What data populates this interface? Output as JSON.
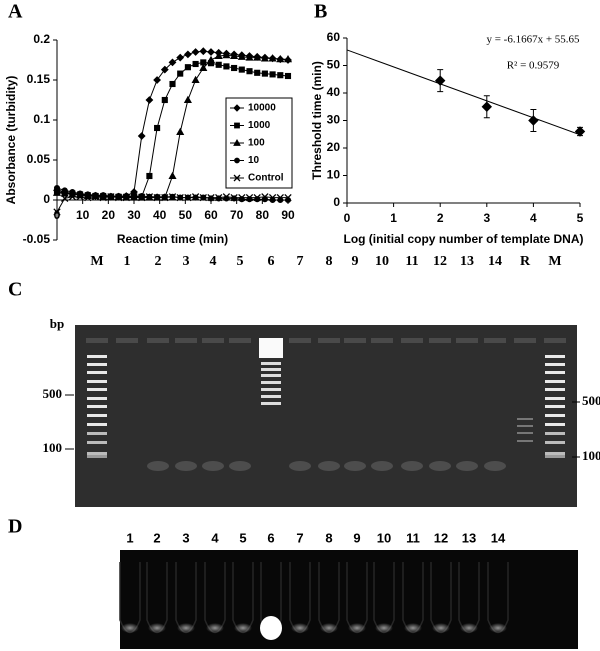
{
  "panels": [
    "A",
    "B",
    "C",
    "D"
  ],
  "chart_data": [
    {
      "type": "line",
      "xlabel": "Reaction time (min)",
      "ylabel": "Absorbance (turbidity)",
      "x": [
        0,
        3,
        6,
        9,
        12,
        15,
        18,
        21,
        24,
        27,
        30,
        33,
        36,
        39,
        42,
        45,
        48,
        51,
        54,
        57,
        60,
        63,
        66,
        69,
        72,
        75,
        78,
        81,
        84,
        87,
        90
      ],
      "series": [
        {
          "name": "10000",
          "color": "#000000",
          "marker": "diamond",
          "values": [
            0.012,
            0.01,
            0.008,
            0.007,
            0.006,
            0.005,
            0.005,
            0.004,
            0.004,
            0.005,
            0.01,
            0.08,
            0.125,
            0.15,
            0.163,
            0.172,
            0.178,
            0.182,
            0.185,
            0.186,
            0.185,
            0.184,
            0.183,
            0.182,
            0.181,
            0.18,
            0.179,
            0.178,
            0.177,
            0.176,
            0.175
          ]
        },
        {
          "name": "1000",
          "color": "#000000",
          "marker": "square",
          "values": [
            0.01,
            0.009,
            0.008,
            0.007,
            0.006,
            0.005,
            0.005,
            0.004,
            0.004,
            0.004,
            0.004,
            0.004,
            0.03,
            0.09,
            0.125,
            0.145,
            0.158,
            0.166,
            0.17,
            0.172,
            0.171,
            0.169,
            0.167,
            0.165,
            0.163,
            0.161,
            0.159,
            0.158,
            0.157,
            0.156,
            0.155
          ]
        },
        {
          "name": "100",
          "color": "#000000",
          "marker": "triangle",
          "values": [
            0.009,
            0.008,
            0.007,
            0.006,
            0.005,
            0.005,
            0.004,
            0.004,
            0.004,
            0.003,
            0.003,
            0.003,
            0.003,
            0.003,
            0.003,
            0.03,
            0.085,
            0.125,
            0.15,
            0.165,
            0.175,
            0.18,
            0.181,
            0.18,
            0.179,
            0.178,
            0.178,
            0.177,
            0.177,
            0.176,
            0.176
          ]
        },
        {
          "name": "10",
          "color": "#000000",
          "marker": "circle",
          "values": [
            0.015,
            0.012,
            0.01,
            0.008,
            0.007,
            0.006,
            0.006,
            0.005,
            0.005,
            0.005,
            0.005,
            0.005,
            0.004,
            0.004,
            0.004,
            0.004,
            0.003,
            0.003,
            0.003,
            0.003,
            0.002,
            0.002,
            0.002,
            0.002,
            0.001,
            0.001,
            0.001,
            0.001,
            0.0,
            0.0,
            0.0
          ]
        },
        {
          "name": "Control",
          "color": "#000000",
          "marker": "x",
          "values": [
            -0.015,
            0.002,
            0.004,
            0.004,
            0.003,
            0.004,
            0.003,
            0.004,
            0.003,
            0.003,
            0.004,
            0.003,
            0.004,
            0.003,
            0.003,
            0.004,
            0.003,
            0.003,
            0.004,
            0.003,
            0.003,
            0.003,
            0.004,
            0.003,
            0.003,
            0.003,
            0.003,
            0.004,
            0.003,
            0.003,
            0.003
          ]
        }
      ],
      "xlim": [
        0,
        90
      ],
      "xticks": [
        0,
        10,
        20,
        30,
        40,
        50,
        60,
        70,
        80,
        90
      ],
      "ylim": [
        -0.05,
        0.2
      ],
      "yticks": [
        -0.05,
        0,
        0.05,
        0.1,
        0.15,
        0.2
      ],
      "legend": "right"
    },
    {
      "type": "scatter",
      "xlabel": "Log (initial copy number of template DNA)",
      "ylabel": "Threshold time (min)",
      "x": [
        2,
        3,
        4,
        5
      ],
      "values": [
        44.5,
        35,
        30,
        26
      ],
      "errors": [
        4,
        4,
        4,
        1.5
      ],
      "color": "#000000",
      "marker": "diamond",
      "trendline": {
        "slope": -6.1667,
        "intercept": 55.65
      },
      "annotations": [
        "y = -6.1667x + 55.65",
        "R² = 0.9579"
      ],
      "xlim": [
        0,
        5
      ],
      "xticks": [
        0,
        1,
        2,
        3,
        4,
        5
      ],
      "ylim": [
        0,
        60
      ],
      "yticks": [
        0,
        10,
        20,
        30,
        40,
        50,
        60
      ]
    }
  ],
  "gel": {
    "lanes": [
      "M",
      "1",
      "2",
      "3",
      "4",
      "5",
      "6",
      "7",
      "8",
      "9",
      "10",
      "11",
      "12",
      "13",
      "14",
      "R",
      "M"
    ],
    "unit": "bp",
    "left_markers": [
      "500",
      "100"
    ],
    "right_markers": [
      "500",
      "100"
    ]
  },
  "tubes": {
    "labels": [
      "1",
      "2",
      "3",
      "4",
      "5",
      "6",
      "7",
      "8",
      "9",
      "10",
      "11",
      "12",
      "13",
      "14"
    ]
  }
}
